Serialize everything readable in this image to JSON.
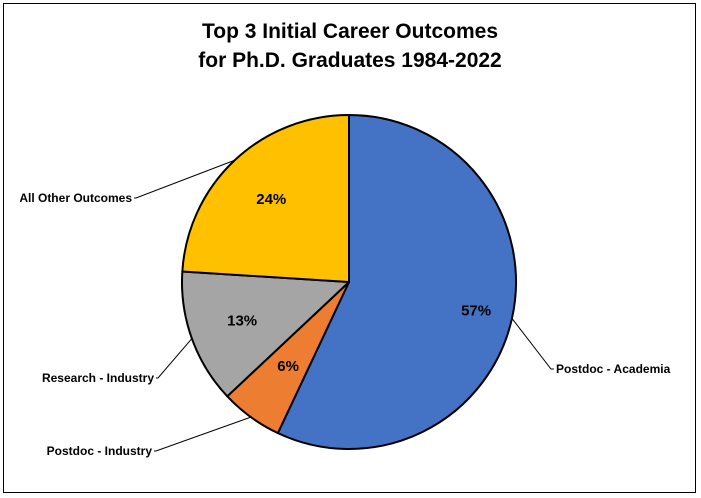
{
  "chart_data": {
    "type": "pie",
    "title_lines": [
      "Top 3 Initial Career Outcomes",
      "for Ph.D. Graduates 1984-2022"
    ],
    "slices": [
      {
        "name": "Postdoc - Academia",
        "value": 57,
        "label": "57%",
        "color": "#4472C4"
      },
      {
        "name": "Postdoc - Industry",
        "value": 6,
        "label": "6%",
        "color": "#ED7D31"
      },
      {
        "name": "Research - Industry",
        "value": 13,
        "label": "13%",
        "color": "#A5A5A5"
      },
      {
        "name": "All Other Outcomes",
        "value": 24,
        "label": "24%",
        "color": "#FFC000"
      }
    ],
    "start": "12 o'clock",
    "direction": "clockwise"
  }
}
